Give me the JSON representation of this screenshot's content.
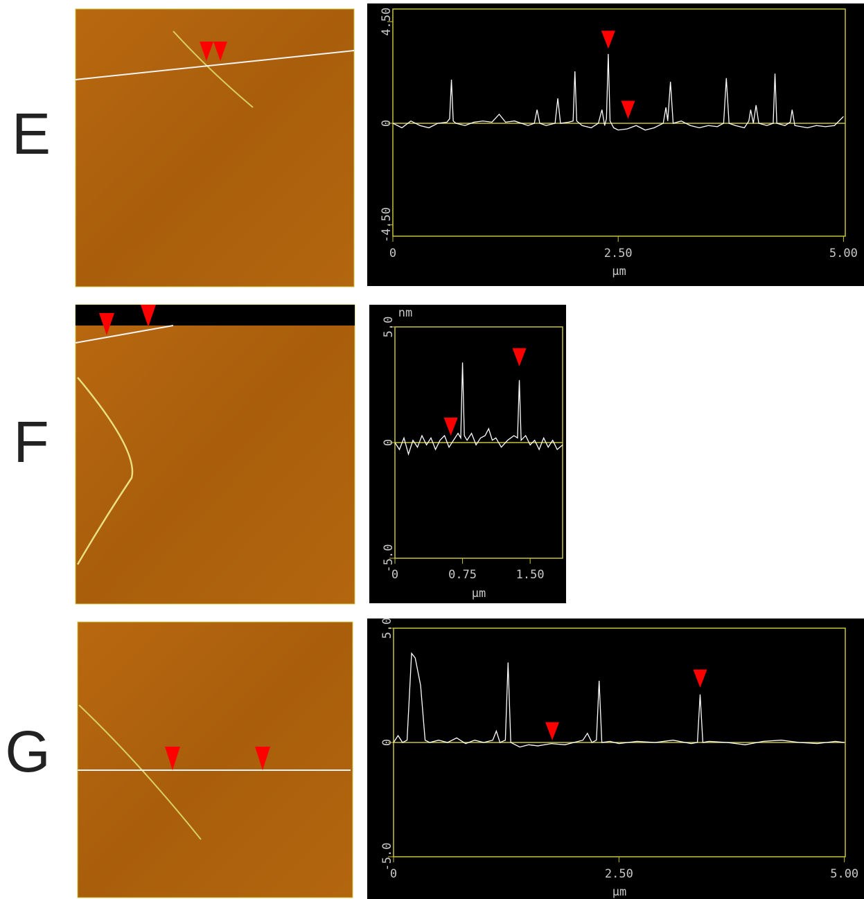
{
  "chart_data": [
    {
      "type": "line",
      "panel_label": "E",
      "color": "#ffffff",
      "frame_color": "#c8c43c",
      "marker_color": "#ff0000",
      "x": [
        0,
        0.1,
        0.2,
        0.3,
        0.4,
        0.5,
        0.6,
        0.63,
        0.65,
        0.67,
        0.7,
        0.8,
        0.9,
        1.0,
        1.1,
        1.18,
        1.25,
        1.35,
        1.5,
        1.57,
        1.6,
        1.63,
        1.7,
        1.8,
        1.83,
        1.86,
        1.95,
        2.0,
        2.02,
        2.04,
        2.1,
        2.2,
        2.28,
        2.32,
        2.35,
        2.37,
        2.39,
        2.41,
        2.45,
        2.5,
        2.6,
        2.7,
        2.8,
        2.9,
        3.0,
        3.03,
        3.05,
        3.08,
        3.11,
        3.2,
        3.3,
        3.4,
        3.5,
        3.6,
        3.67,
        3.7,
        3.73,
        3.8,
        3.9,
        3.95,
        3.97,
        4.0,
        4.03,
        4.06,
        4.15,
        4.22,
        4.24,
        4.26,
        4.35,
        4.41,
        4.43,
        4.46,
        4.6,
        4.7,
        4.8,
        4.9,
        5.0
      ],
      "values": [
        0,
        -0.2,
        0.1,
        -0.1,
        -0.2,
        0,
        0.05,
        0.2,
        1.93,
        0.1,
        0,
        -0.1,
        0.05,
        0.1,
        0.05,
        0.4,
        0.05,
        0.1,
        -0.1,
        0,
        0.6,
        0,
        -0.1,
        0,
        1.1,
        0,
        0.05,
        0.1,
        2.3,
        0.1,
        -0.1,
        -0.2,
        0,
        0.6,
        -0.1,
        0.2,
        3.07,
        0.1,
        -0.2,
        -0.3,
        -0.25,
        -0.1,
        -0.3,
        -0.2,
        0,
        0.7,
        0.1,
        1.84,
        0,
        0.1,
        -0.1,
        -0.2,
        -0.1,
        -0.15,
        0,
        2.0,
        0,
        -0.1,
        -0.2,
        0.1,
        0.6,
        0,
        0.8,
        0,
        -0.1,
        0,
        2.2,
        0,
        -0.1,
        0.05,
        0.6,
        -0.1,
        -0.2,
        -0.1,
        -0.15,
        -0.1,
        0.3
      ],
      "xlim": [
        0,
        5.02
      ],
      "ylim": [
        -5,
        5.06
      ],
      "xticks": [
        0,
        {
          "value": 2.5,
          "label": "2.50"
        },
        {
          "value": 5,
          "label": "5.00"
        }
      ],
      "yticks": [
        {
          "value": -4.5,
          "label": "-4.50"
        },
        0,
        {
          "value": 4.5,
          "label": "4.50"
        }
      ],
      "xlabel": "µm",
      "markers": [
        {
          "x": 2.39,
          "y": 3.3
        },
        {
          "x": 2.61,
          "y": 0.2
        }
      ]
    },
    {
      "type": "line",
      "panel_label": "F",
      "color": "#ffffff",
      "frame_color": "#c8c43c",
      "marker_color": "#ff0000",
      "x": [
        0,
        0.05,
        0.1,
        0.15,
        0.2,
        0.25,
        0.3,
        0.35,
        0.4,
        0.45,
        0.5,
        0.55,
        0.6,
        0.65,
        0.7,
        0.73,
        0.75,
        0.77,
        0.8,
        0.85,
        0.9,
        0.95,
        1.0,
        1.04,
        1.08,
        1.12,
        1.18,
        1.25,
        1.32,
        1.36,
        1.38,
        1.4,
        1.45,
        1.5,
        1.55,
        1.6,
        1.65,
        1.7,
        1.75,
        1.8,
        1.86
      ],
      "values": [
        0,
        -0.3,
        0.2,
        -0.5,
        0.1,
        -0.2,
        0.3,
        -0.1,
        0.2,
        -0.3,
        0.1,
        0.3,
        -0.2,
        0.1,
        0.4,
        0.2,
        3.46,
        0.3,
        0.1,
        0.4,
        -0.1,
        0.2,
        0.3,
        0.6,
        0.1,
        0.2,
        -0.2,
        0.1,
        0.3,
        0.2,
        2.7,
        0.1,
        0.3,
        -0.1,
        0.1,
        -0.3,
        0.2,
        -0.2,
        0.1,
        -0.3,
        -0.1
      ],
      "xlim": [
        0,
        1.86
      ],
      "ylim": [
        -5,
        5
      ],
      "xticks": [
        0,
        0.75,
        {
          "value": 1.5,
          "label": "1.50"
        }
      ],
      "yticks": [
        {
          "value": -5,
          "label": "-5.0"
        },
        0,
        {
          "value": 5,
          "label": "5.0"
        }
      ],
      "xlabel": "µm",
      "ylabel": "nm",
      "markers": [
        {
          "x": 0.62,
          "y": 0.3
        },
        {
          "x": 1.38,
          "y": 3.3
        }
      ]
    },
    {
      "type": "line",
      "panel_label": "G",
      "color": "#ffffff",
      "frame_color": "#c8c43c",
      "marker_color": "#ff0000",
      "x": [
        0,
        0.05,
        0.1,
        0.15,
        0.2,
        0.24,
        0.3,
        0.35,
        0.4,
        0.5,
        0.6,
        0.7,
        0.8,
        0.9,
        1.0,
        1.1,
        1.14,
        1.18,
        1.24,
        1.27,
        1.3,
        1.4,
        1.5,
        1.6,
        1.75,
        1.9,
        2.0,
        2.1,
        2.15,
        2.2,
        2.25,
        2.28,
        2.31,
        2.4,
        2.5,
        2.7,
        2.9,
        3.1,
        3.3,
        3.37,
        3.4,
        3.43,
        3.5,
        3.7,
        3.9,
        4.1,
        4.3,
        4.5,
        4.7,
        4.9,
        5.0
      ],
      "values": [
        0,
        0.3,
        0,
        0.1,
        3.9,
        3.7,
        2.5,
        0.1,
        0,
        0.1,
        0,
        0.2,
        -0.05,
        0.1,
        0,
        0.1,
        0.5,
        0,
        0.1,
        3.5,
        0,
        -0.2,
        -0.1,
        -0.15,
        -0.05,
        -0.1,
        0,
        0.1,
        0.4,
        0,
        0.1,
        2.7,
        0,
        0.05,
        -0.05,
        0.05,
        0,
        0.1,
        -0.05,
        0,
        2.1,
        0,
        0.05,
        0,
        -0.1,
        0.05,
        0.1,
        0,
        -0.05,
        0.05,
        0
      ],
      "xlim": [
        0,
        5.01
      ],
      "ylim": [
        -5,
        5
      ],
      "xticks": [
        0,
        {
          "value": 2.5,
          "label": "2.50"
        },
        {
          "value": 5,
          "label": "5.00"
        }
      ],
      "yticks": [
        {
          "value": -5,
          "label": "-5.0"
        },
        0,
        {
          "value": 5,
          "label": "5.0"
        }
      ],
      "xlabel": "µm",
      "markers": [
        {
          "x": 1.76,
          "y": 0.1
        },
        {
          "x": 3.4,
          "y": 2.4
        }
      ]
    }
  ]
}
